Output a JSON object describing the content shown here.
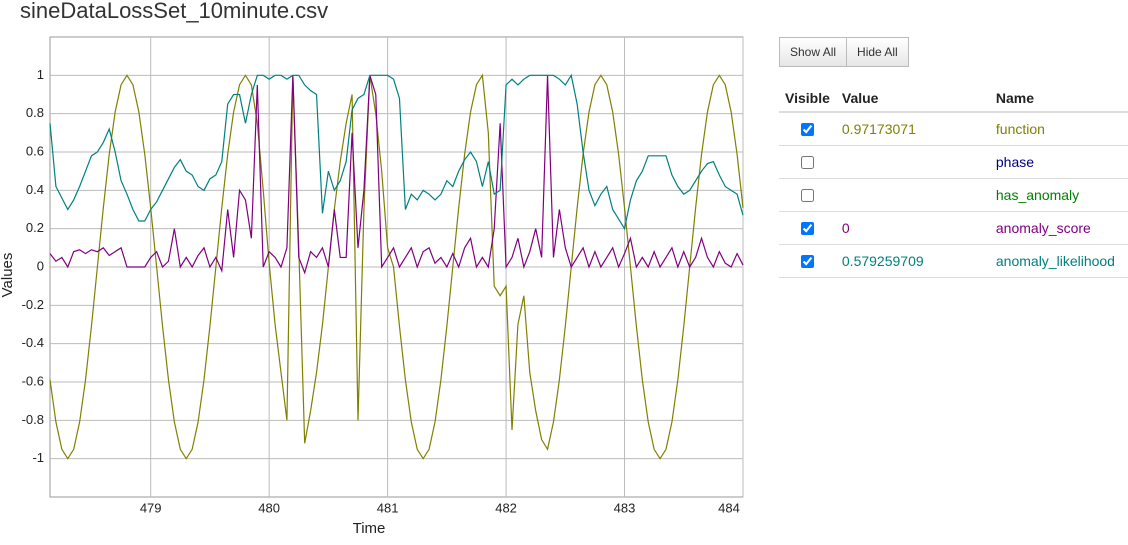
{
  "chart_data": {
    "type": "line",
    "title": "sineDataLossSet_10minute.csv",
    "x_label": "Time",
    "y_label": "Values",
    "xlim": [
      478.15,
      484.0
    ],
    "ylim": [
      -1.2,
      1.2
    ],
    "xticks": [
      479,
      480,
      481,
      482,
      483,
      484
    ],
    "yticks": [
      -1,
      -0.8,
      -0.6,
      -0.4,
      -0.2,
      0,
      0.2,
      0.4,
      0.6,
      0.8,
      1
    ],
    "grid": true,
    "x": [
      478.15,
      478.2,
      478.25,
      478.3,
      478.35,
      478.4,
      478.45,
      478.5,
      478.55,
      478.6,
      478.65,
      478.7,
      478.75,
      478.8,
      478.85,
      478.9,
      478.95,
      479.0,
      479.05,
      479.1,
      479.15,
      479.2,
      479.25,
      479.3,
      479.35,
      479.4,
      479.45,
      479.5,
      479.55,
      479.6,
      479.65,
      479.7,
      479.75,
      479.8,
      479.85,
      479.9,
      479.95,
      480.0,
      480.05,
      480.1,
      480.15,
      480.2,
      480.25,
      480.3,
      480.35,
      480.4,
      480.45,
      480.5,
      480.55,
      480.6,
      480.65,
      480.7,
      480.75,
      480.8,
      480.85,
      480.9,
      480.95,
      481.0,
      481.05,
      481.1,
      481.15,
      481.2,
      481.25,
      481.3,
      481.35,
      481.4,
      481.45,
      481.5,
      481.55,
      481.6,
      481.65,
      481.7,
      481.75,
      481.8,
      481.85,
      481.9,
      481.95,
      482.0,
      482.05,
      482.1,
      482.15,
      482.2,
      482.25,
      482.3,
      482.35,
      482.4,
      482.45,
      482.5,
      482.55,
      482.6,
      482.65,
      482.7,
      482.75,
      482.8,
      482.85,
      482.9,
      482.95,
      483.0,
      483.05,
      483.1,
      483.15,
      483.2,
      483.25,
      483.3,
      483.35,
      483.4,
      483.45,
      483.5,
      483.55,
      483.6,
      483.65,
      483.7,
      483.75,
      483.8,
      483.85,
      483.9,
      483.95,
      484.0
    ],
    "series": [
      {
        "name": "function",
        "color": "#808000",
        "visible": true,
        "current_value": 0.97173071,
        "values": [
          -0.588,
          -0.809,
          -0.951,
          -1,
          -0.951,
          -0.809,
          -0.588,
          -0.309,
          0,
          0.309,
          0.588,
          0.809,
          0.951,
          1,
          0.951,
          0.809,
          0.588,
          0.309,
          0,
          -0.309,
          -0.588,
          -0.809,
          -0.951,
          -1,
          -0.951,
          -0.809,
          -0.588,
          -0.309,
          0,
          0.309,
          0.588,
          0.809,
          0.951,
          1,
          0.95,
          0.75,
          0.4,
          0.02,
          -0.3,
          -0.55,
          -0.8,
          1,
          0.1,
          -0.92,
          -0.75,
          -0.55,
          -0.3,
          0,
          0.3,
          0.55,
          0.75,
          0.9,
          -0.8,
          0.3,
          1,
          0.8,
          0.5,
          0.1,
          0,
          -0.309,
          -0.588,
          -0.809,
          -0.951,
          -1,
          -0.951,
          -0.809,
          -0.588,
          -0.309,
          0,
          0.309,
          0.588,
          0.809,
          0.951,
          1,
          0.7,
          -0.1,
          -0.15,
          -0.1,
          -0.85,
          -0.3,
          -0.15,
          -0.55,
          -0.75,
          -0.9,
          -0.951,
          -0.809,
          -0.588,
          -0.309,
          0,
          0.309,
          0.588,
          0.809,
          0.951,
          1,
          0.951,
          0.809,
          0.588,
          0.309,
          0,
          -0.309,
          -0.588,
          -0.809,
          -0.951,
          -1,
          -0.951,
          -0.809,
          -0.588,
          -0.309,
          0,
          0.309,
          0.588,
          0.809,
          0.951,
          1,
          0.951,
          0.809,
          0.588,
          0.309
        ]
      },
      {
        "name": "phase",
        "color": "#000080",
        "visible": false
      },
      {
        "name": "has_anomaly",
        "color": "#008000",
        "visible": false
      },
      {
        "name": "anomaly_score",
        "color": "#800080",
        "visible": true,
        "current_value": 0,
        "values": [
          0.07,
          0.03,
          0.05,
          0,
          0.08,
          0.09,
          0.07,
          0.09,
          0.08,
          0.1,
          0.06,
          0.08,
          0.1,
          0,
          0,
          0,
          0,
          0.05,
          0.08,
          0,
          0.03,
          0.2,
          0,
          0.05,
          0,
          0.06,
          0.1,
          0,
          0.05,
          -0.02,
          0.3,
          0.05,
          0.4,
          0.35,
          0.15,
          0.95,
          0,
          0.08,
          0.05,
          0,
          0.1,
          1,
          0.05,
          -0.03,
          0.08,
          0.05,
          0.1,
          0,
          0.3,
          0.05,
          0.05,
          0.7,
          0.1,
          0.4,
          1,
          0.9,
          0,
          0.05,
          0.1,
          0,
          0.05,
          0.1,
          0,
          0.08,
          0.1,
          0.02,
          0.05,
          0,
          0.07,
          0,
          0.1,
          0.15,
          0,
          0.05,
          0,
          0.2,
          0.75,
          0,
          0.05,
          0.15,
          0,
          0.08,
          0.2,
          0.05,
          1,
          0.05,
          0.3,
          0.1,
          0,
          0.05,
          0.1,
          0,
          0.08,
          0,
          0.05,
          0.1,
          0,
          0.07,
          0.15,
          0,
          0.05,
          0,
          0.08,
          0,
          0.05,
          0.1,
          0,
          0.08,
          0,
          0.05,
          0.15,
          0.05,
          0,
          0.08,
          0.02,
          0,
          0.07,
          0.01
        ]
      },
      {
        "name": "anomaly_likelihood",
        "color": "#008080",
        "visible": true,
        "current_value": 0.579259709,
        "values": [
          0.75,
          0.42,
          0.36,
          0.3,
          0.35,
          0.42,
          0.5,
          0.58,
          0.6,
          0.65,
          0.72,
          0.6,
          0.45,
          0.38,
          0.3,
          0.24,
          0.24,
          0.3,
          0.34,
          0.4,
          0.46,
          0.52,
          0.56,
          0.5,
          0.48,
          0.42,
          0.4,
          0.46,
          0.48,
          0.55,
          0.85,
          0.9,
          0.9,
          0.75,
          0.9,
          1,
          1,
          0.98,
          1,
          1,
          0.98,
          1,
          1,
          0.95,
          0.92,
          0.9,
          0.28,
          0.5,
          0.4,
          0.45,
          0.55,
          0.82,
          0.88,
          0.9,
          1,
          1,
          1,
          1,
          0.98,
          0.88,
          0.3,
          0.38,
          0.35,
          0.4,
          0.38,
          0.35,
          0.38,
          0.45,
          0.42,
          0.5,
          0.56,
          0.6,
          0.55,
          0.42,
          0.55,
          0.38,
          0.4,
          0.95,
          0.98,
          0.95,
          0.98,
          1,
          1,
          1,
          1,
          1,
          0.98,
          0.95,
          1,
          0.85,
          0.6,
          0.4,
          0.32,
          0.38,
          0.42,
          0.3,
          0.25,
          0.2,
          0.35,
          0.45,
          0.5,
          0.58,
          0.58,
          0.58,
          0.58,
          0.48,
          0.42,
          0.38,
          0.4,
          0.45,
          0.5,
          0.54,
          0.55,
          0.48,
          0.42,
          0.4,
          0.38,
          0.27
        ]
      }
    ]
  },
  "controls": {
    "buttons": [
      "Show All",
      "Hide All"
    ],
    "columns": [
      "Visible",
      "Value",
      "Name"
    ]
  }
}
